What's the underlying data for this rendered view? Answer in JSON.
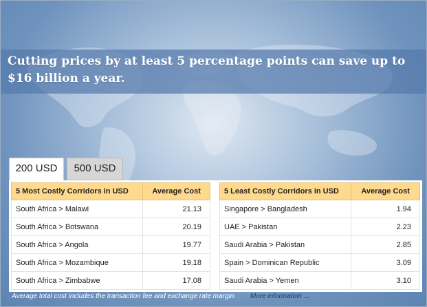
{
  "headline": "Cutting prices by at least 5 percentage points can save up to $16 billion a year.",
  "tabs": {
    "active": "200 USD",
    "inactive": "500 USD"
  },
  "most_costly": {
    "header_label": "5 Most Costly Corridors in USD",
    "header_value": "Average Cost",
    "rows": [
      {
        "corridor": "South Africa > Malawi",
        "cost": "21.13"
      },
      {
        "corridor": "South Africa > Botswana",
        "cost": "20.19"
      },
      {
        "corridor": "South Africa > Angola",
        "cost": "19.77"
      },
      {
        "corridor": "South Africa > Mozambique",
        "cost": "19.18"
      },
      {
        "corridor": "South Africa > Zimbabwe",
        "cost": "17.08"
      }
    ]
  },
  "least_costly": {
    "header_label": "5 Least Costly Corridors in USD",
    "header_value": "Average Cost",
    "rows": [
      {
        "corridor": "Singapore > Bangladesh",
        "cost": "1.94"
      },
      {
        "corridor": "UAE > Pakistan",
        "cost": "2.23"
      },
      {
        "corridor": "Saudi Arabia > Pakistan",
        "cost": "2.85"
      },
      {
        "corridor": "Spain > Dominican Republic",
        "cost": "3.09"
      },
      {
        "corridor": "Saudi Arabia > Yemen",
        "cost": "3.10"
      }
    ]
  },
  "footer": {
    "note": "Average total cost includes the transaction fee and exchange rate margin.",
    "more_link": "More information ..."
  },
  "colors": {
    "header_fill": "#ffd98e",
    "background_blue": "#5d84b3"
  }
}
